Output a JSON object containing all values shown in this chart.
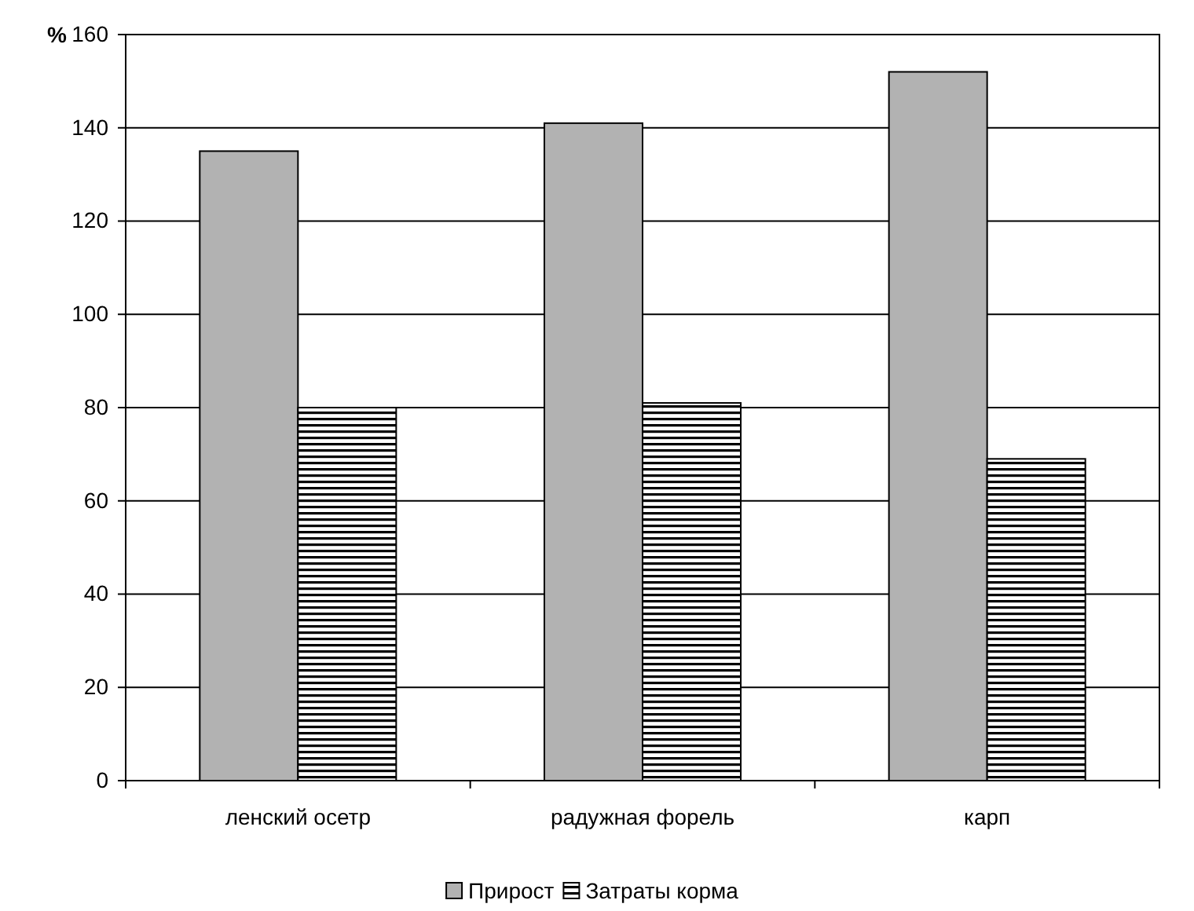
{
  "chart_data": {
    "type": "bar",
    "ylabel": "%",
    "categories": [
      "ленский осетр",
      "радужная форель",
      "карп"
    ],
    "series": [
      {
        "name": "Прирост",
        "color": "#b2b2b2",
        "values": [
          135,
          141,
          152
        ]
      },
      {
        "name": "Затраты корма",
        "color": "#000000",
        "values": [
          80,
          81,
          69
        ]
      }
    ],
    "ylim": [
      0,
      160
    ],
    "yticks": [
      0,
      20,
      40,
      60,
      80,
      100,
      120,
      140,
      160
    ],
    "grid": "y",
    "legend": "bottom"
  }
}
